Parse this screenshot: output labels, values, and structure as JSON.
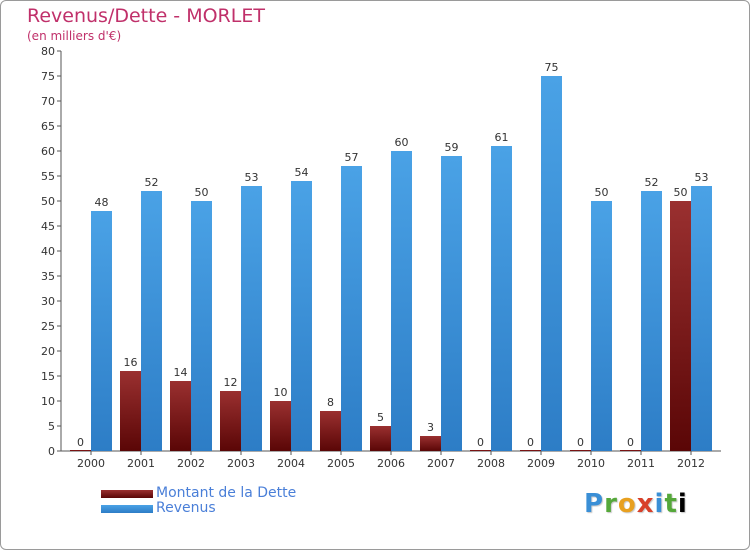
{
  "chart_data": {
    "type": "bar",
    "title": "Revenus/Dette - MORLET",
    "subtitle": "(en milliers d'€)",
    "xlabel": "",
    "ylabel": "",
    "ylim": [
      0,
      80
    ],
    "yticks": [
      0,
      5,
      10,
      15,
      20,
      25,
      30,
      35,
      40,
      45,
      50,
      55,
      60,
      65,
      70,
      75,
      80
    ],
    "grid": false,
    "legend_position": "bottom-left",
    "categories": [
      "2000",
      "2001",
      "2002",
      "2003",
      "2004",
      "2005",
      "2006",
      "2007",
      "2008",
      "2009",
      "2010",
      "2011",
      "2012"
    ],
    "series": [
      {
        "name": "Montant de la Dette",
        "color": "#7a1414",
        "values": [
          0,
          16,
          14,
          12,
          10,
          8,
          5,
          3,
          0,
          0,
          0,
          0,
          50
        ]
      },
      {
        "name": "Revenus",
        "color": "#3d94dc",
        "values": [
          48,
          52,
          50,
          53,
          54,
          57,
          60,
          59,
          61,
          75,
          50,
          52,
          53
        ]
      }
    ]
  },
  "logo": {
    "letters": [
      "P",
      "r",
      "o",
      "x",
      "i",
      "t",
      "i"
    ]
  }
}
